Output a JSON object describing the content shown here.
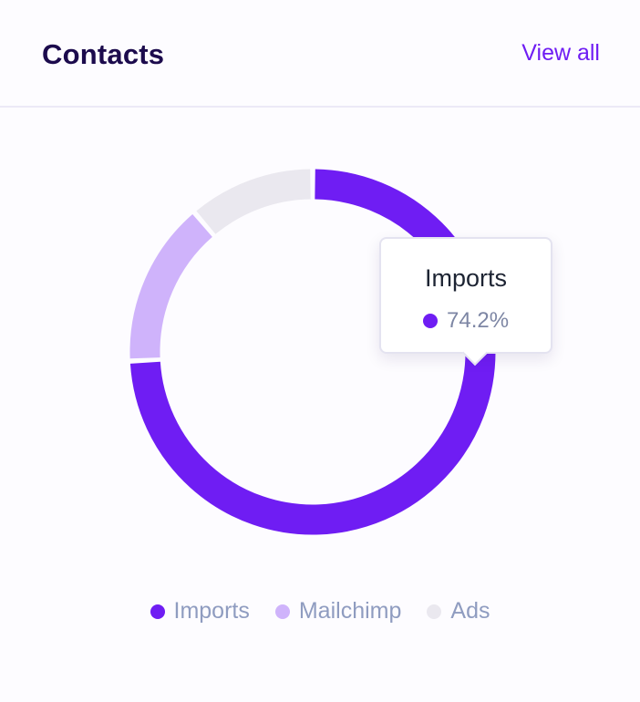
{
  "header": {
    "title": "Contacts",
    "view_all_label": "View all"
  },
  "colors": {
    "imports": "#6f1df3",
    "mailchimp": "#cfb3fb",
    "ads": "#eae8ef"
  },
  "tooltip": {
    "title": "Imports",
    "value": "74.2%",
    "dot_color": "#6f1df3"
  },
  "chart_data": {
    "type": "pie",
    "variant": "doughnut",
    "title": "",
    "legend_position": "bottom",
    "series": [
      {
        "name": "Imports",
        "value": 74.2,
        "color": "#6f1df3"
      },
      {
        "name": "Mailchimp",
        "value": 14.6,
        "color": "#cfb3fb"
      },
      {
        "name": "Ads",
        "value": 11.2,
        "color": "#eae8ef"
      }
    ]
  }
}
